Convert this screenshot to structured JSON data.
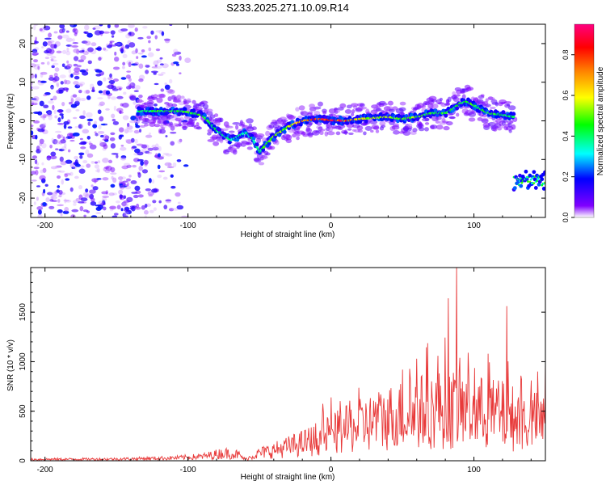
{
  "title": "S233.2025.271.10.09.R14",
  "chart_data": [
    {
      "type": "heatmap",
      "name": "spectrogram",
      "xlabel": "Height of straight line (km)",
      "ylabel": "Frequency (Hz)",
      "xlim": [
        -210,
        150
      ],
      "ylim": [
        -25,
        25
      ],
      "xticks": [
        "-200",
        "-100",
        "0",
        "100"
      ],
      "yticks": [
        "-20",
        "-10",
        "0",
        "10",
        "20"
      ],
      "colorbar": {
        "label": "Normalized spectral amplitude",
        "range": [
          0,
          0.95
        ],
        "ticks": [
          "0.0",
          "0.2",
          "0.4",
          "0.6",
          "0.8"
        ],
        "colors": [
          "#ffffff",
          "#8000ff",
          "#0000ff",
          "#00ffff",
          "#00ff00",
          "#ffff00",
          "#ff8000",
          "#ff0000",
          "#ff0080"
        ]
      },
      "ridge": {
        "description": "Doppler trace of the signal vs height",
        "x": [
          -135,
          -120,
          -105,
          -90,
          -80,
          -70,
          -60,
          -55,
          -50,
          -45,
          -40,
          -30,
          -20,
          -10,
          0,
          10,
          20,
          30,
          40,
          50,
          60,
          70,
          80,
          85,
          90,
          95,
          100,
          110,
          120,
          128
        ],
        "y": [
          2.5,
          2.5,
          2.5,
          1.5,
          -2.5,
          -5.0,
          -3.0,
          -4.5,
          -8.0,
          -6.0,
          -4.0,
          -1.5,
          0.0,
          0.5,
          0.2,
          0.0,
          0.5,
          0.8,
          1.0,
          0.5,
          1.0,
          2.0,
          2.0,
          3.0,
          4.5,
          5.0,
          4.0,
          2.0,
          1.5,
          1.0
        ],
        "amplitude": [
          0.45,
          0.48,
          0.5,
          0.5,
          0.45,
          0.42,
          0.4,
          0.42,
          0.45,
          0.5,
          0.55,
          0.6,
          0.75,
          0.88,
          0.95,
          0.9,
          0.65,
          0.6,
          0.58,
          0.55,
          0.55,
          0.5,
          0.5,
          0.48,
          0.48,
          0.5,
          0.5,
          0.5,
          0.48,
          0.45
        ]
      },
      "secondary_patch": {
        "x": [
          128,
          150
        ],
        "y_center": -15.5,
        "amplitude": 0.45
      }
    },
    {
      "type": "line",
      "name": "snr",
      "xlabel": "Height of straight line (km)",
      "ylabel": "SNR (10 * v/v)",
      "xlim": [
        -210,
        150
      ],
      "ylim": [
        0,
        1950
      ],
      "xticks": [
        "-200",
        "-100",
        "0",
        "100"
      ],
      "yticks": [
        "0",
        "500",
        "1000",
        "1500"
      ],
      "color": "#e83a3a",
      "envelope": {
        "x": [
          -210,
          -150,
          -110,
          -90,
          -75,
          -65,
          -60,
          -50,
          -40,
          -20,
          0,
          20,
          40,
          60,
          80,
          100,
          120,
          135,
          150
        ],
        "y": [
          20,
          25,
          40,
          60,
          110,
          90,
          20,
          110,
          150,
          250,
          380,
          500,
          620,
          700,
          750,
          700,
          650,
          580,
          550
        ]
      },
      "peaks": [
        {
          "x": 0,
          "y": 640
        },
        {
          "x": 50,
          "y": 920
        },
        {
          "x": 60,
          "y": 1030
        },
        {
          "x": 75,
          "y": 1060
        },
        {
          "x": 82,
          "y": 1640
        },
        {
          "x": 88,
          "y": 1950
        },
        {
          "x": 96,
          "y": 1090
        },
        {
          "x": 110,
          "y": 1080
        },
        {
          "x": 123,
          "y": 1560
        },
        {
          "x": 150,
          "y": 1000
        }
      ]
    }
  ]
}
